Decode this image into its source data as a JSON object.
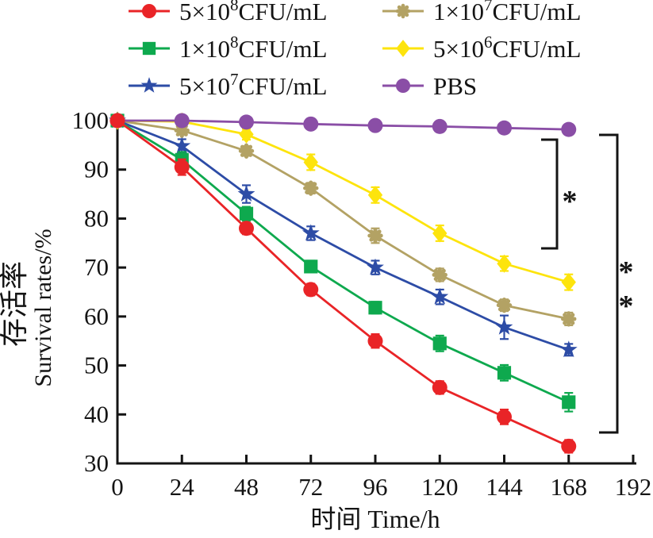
{
  "figure": {
    "background": "#ffffff",
    "axis_color": "#141414"
  },
  "chart_data": {
    "type": "line",
    "title": "",
    "xlabel": "时间 Time/h",
    "ylabel_cn": "存活率",
    "ylabel_en": "Survival rates/%",
    "xlim": [
      0,
      192
    ],
    "ylim": [
      30,
      100
    ],
    "x_ticks": [
      0,
      24,
      48,
      72,
      96,
      120,
      144,
      168,
      192
    ],
    "y_ticks": [
      30,
      40,
      50,
      60,
      70,
      80,
      90,
      100
    ],
    "grid": false,
    "legend_position": "top",
    "x": [
      0,
      24,
      48,
      72,
      96,
      120,
      144,
      168
    ],
    "series": [
      {
        "name": "5×10⁸CFU/mL",
        "label": {
          "base": "5×10",
          "sup": "8",
          "rest": "CFU/mL"
        },
        "marker": "circle",
        "color": "#e92427",
        "values": [
          100,
          90.5,
          78,
          65.5,
          55,
          45.5,
          39.5,
          33.5
        ],
        "errors": [
          0,
          1.6,
          1.2,
          1.2,
          1.4,
          1.3,
          1.5,
          1.3
        ]
      },
      {
        "name": "1×10⁸CFU/mL",
        "label": {
          "base": "1×10",
          "sup": "8",
          "rest": "CFU/mL"
        },
        "marker": "square",
        "color": "#0ea94e",
        "values": [
          100,
          92,
          81,
          70.2,
          61.8,
          54.5,
          48.5,
          42.5
        ],
        "errors": [
          0,
          1.6,
          1.4,
          1.2,
          1.2,
          1.6,
          1.6,
          1.9
        ]
      },
      {
        "name": "5×10⁷CFU/mL",
        "label": {
          "base": "5×10",
          "sup": "7",
          "rest": "CFU/mL"
        },
        "marker": "star",
        "color": "#2d4ca6",
        "values": [
          100,
          94.8,
          85,
          77,
          70,
          64,
          57.8,
          53.2
        ],
        "errors": [
          0,
          1.4,
          1.8,
          1.4,
          1.4,
          1.5,
          2.4,
          1.2
        ]
      },
      {
        "name": "1×10⁷CFU/mL",
        "label": {
          "base": "1×10",
          "sup": "7",
          "rest": "CFU/mL"
        },
        "marker": "flower",
        "color": "#b3a264",
        "values": [
          100,
          98,
          93.8,
          86.2,
          76.5,
          68.5,
          62.3,
          59.5
        ],
        "errors": [
          0,
          0.9,
          1.0,
          1.1,
          1.5,
          1.3,
          1.2,
          1.3
        ]
      },
      {
        "name": "5×10⁶CFU/mL",
        "label": {
          "base": "5×10",
          "sup": "6",
          "rest": "CFU/mL"
        },
        "marker": "diamond",
        "color": "#fde40d",
        "values": [
          100,
          99.8,
          97.2,
          91.5,
          84.8,
          77,
          70.8,
          67
        ],
        "errors": [
          0,
          0.7,
          1.1,
          1.6,
          1.6,
          1.6,
          1.5,
          1.6
        ]
      },
      {
        "name": "PBS",
        "label": {
          "base": "PBS",
          "sup": "",
          "rest": ""
        },
        "marker": "circle",
        "color": "#8a4ea6",
        "values": [
          100,
          100,
          99.7,
          99.3,
          99,
          98.8,
          98.5,
          98.2
        ],
        "errors": [
          0,
          0,
          0,
          0,
          0,
          0,
          0,
          0
        ]
      }
    ],
    "significance": [
      {
        "stars": [
          "*"
        ],
        "between": [
          "PBS",
          "5×10⁶CFU/mL"
        ]
      },
      {
        "stars": [
          "*",
          "*"
        ],
        "between": [
          "PBS",
          "5×10⁸CFU/mL"
        ]
      }
    ]
  }
}
